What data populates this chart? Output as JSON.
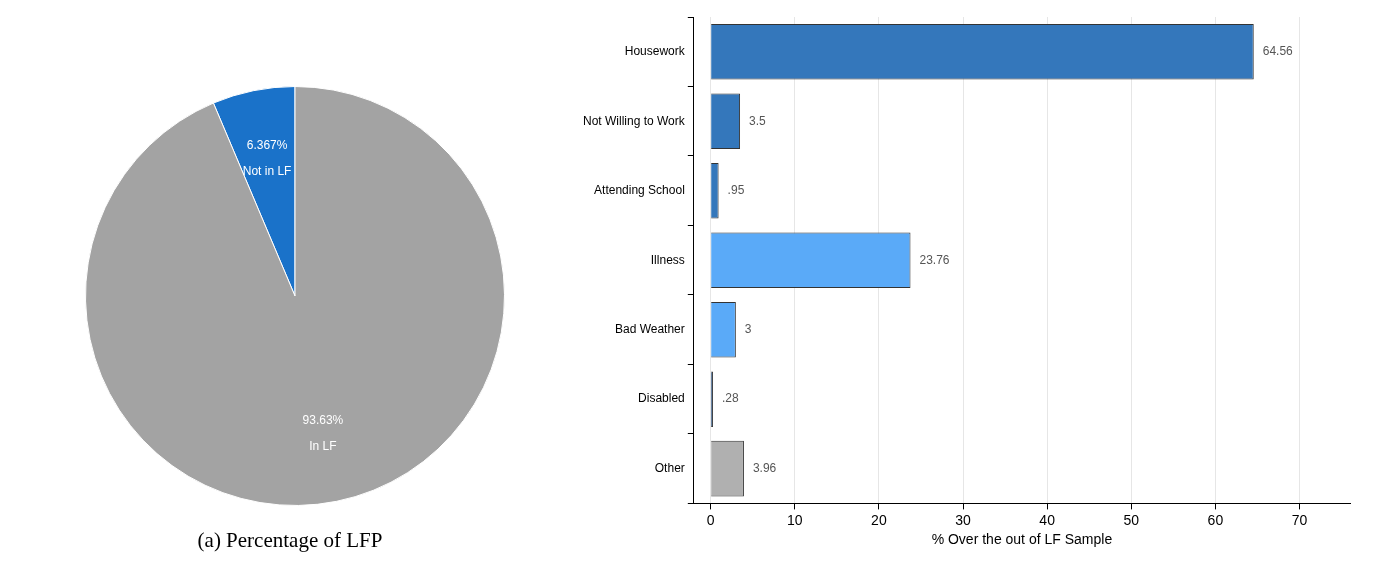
{
  "chart_data": [
    {
      "type": "pie",
      "title": "(a) Percentage of LFP",
      "categories": [
        "Not in LF",
        "In LF"
      ],
      "values": [
        6.367,
        93.63
      ],
      "colors": [
        "#1a72c9",
        "#a3a3a3"
      ],
      "value_labels": [
        "6.367%",
        "93.63%"
      ]
    },
    {
      "type": "bar",
      "orientation": "horizontal",
      "categories": [
        "Housework",
        "Not Willing to Work",
        "Attending School",
        "Illness",
        "Bad Weather",
        "Disabled",
        "Other"
      ],
      "values": [
        64.56,
        3.5,
        0.95,
        23.76,
        3,
        0.28,
        3.96
      ],
      "colors": [
        "#3477bb",
        "#3477bb",
        "#3477bb",
        "#5aaaf8",
        "#5aaaf8",
        "#3c5f88",
        "#b0b0b0"
      ],
      "value_labels": [
        "64.56",
        "3.5",
        ".95",
        "23.76",
        "3",
        ".28",
        "3.96"
      ],
      "xlim": [
        -2,
        76
      ],
      "xticks": [
        0,
        10,
        20,
        30,
        40,
        50,
        60,
        70
      ],
      "xlabel": "% Over the out of LF Sample",
      "grid": "x"
    }
  ]
}
